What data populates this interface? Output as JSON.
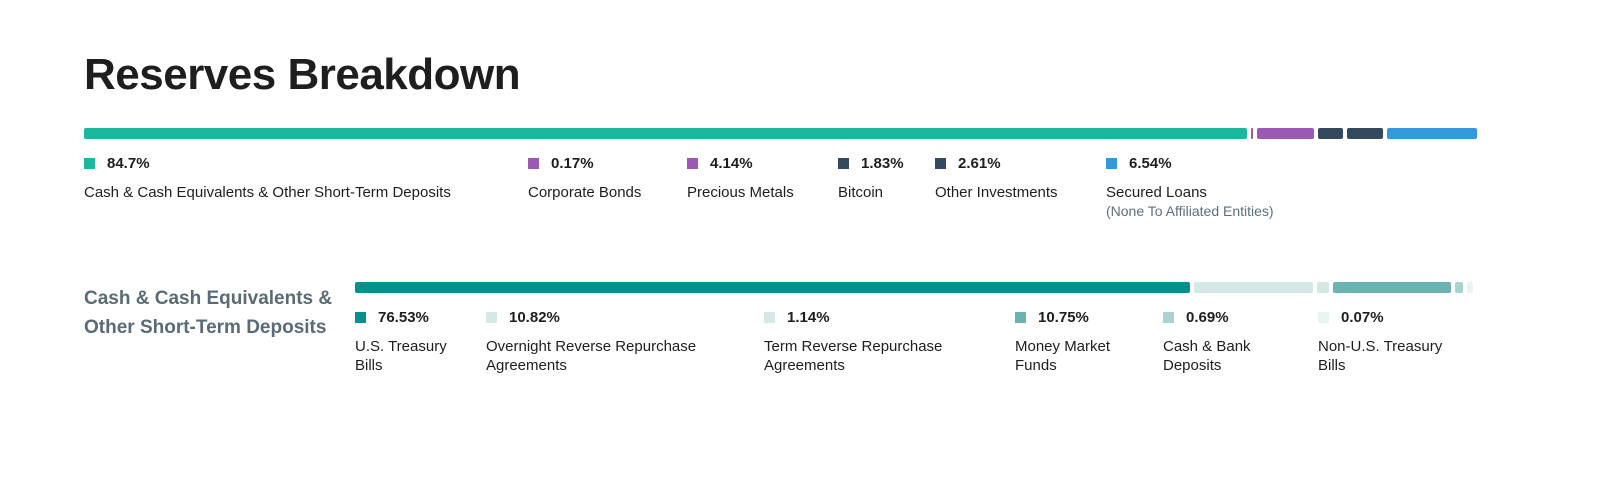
{
  "page": {
    "title": "Reserves Breakdown"
  },
  "chart_data": [
    {
      "type": "bar",
      "orientation": "stacked-horizontal",
      "total": 100,
      "segments": [
        {
          "value": 84.7,
          "pct_label": "84.7%",
          "label": "Cash & Cash Equivalents & Other Short-Term Deposits",
          "sublabel": "",
          "color": "#1cb89b"
        },
        {
          "value": 0.17,
          "pct_label": "0.17%",
          "label": "Corporate Bonds",
          "sublabel": "",
          "color": "#9b59b6"
        },
        {
          "value": 4.14,
          "pct_label": "4.14%",
          "label": "Precious Metals",
          "sublabel": "",
          "color": "#9b59b6"
        },
        {
          "value": 1.83,
          "pct_label": "1.83%",
          "label": "Bitcoin",
          "sublabel": "",
          "color": "#34495e"
        },
        {
          "value": 2.61,
          "pct_label": "2.61%",
          "label": "Other Investments",
          "sublabel": "",
          "color": "#34495e"
        },
        {
          "value": 6.54,
          "pct_label": "6.54%",
          "label": "Secured Loans",
          "sublabel": "(None To Affiliated Entities)",
          "color": "#3498db"
        }
      ]
    },
    {
      "type": "bar",
      "orientation": "stacked-horizontal",
      "title": "Cash & Cash Equivalents & Other Short-Term Deposits",
      "total": 100,
      "segments": [
        {
          "value": 76.53,
          "pct_label": "76.53%",
          "label": "U.S. Treasury Bills",
          "color": "#078f8b"
        },
        {
          "value": 10.82,
          "pct_label": "10.82%",
          "label": "Overnight Reverse Repurchase Agreements",
          "color": "#d4e8e6"
        },
        {
          "value": 1.14,
          "pct_label": "1.14%",
          "label": "Term Reverse Repurchase Agreements",
          "color": "#d4e8e6"
        },
        {
          "value": 10.75,
          "pct_label": "10.75%",
          "label": "Money Market Funds",
          "color": "#6bb3b1"
        },
        {
          "value": 0.69,
          "pct_label": "0.69%",
          "label": "Cash & Bank Deposits",
          "color": "#a8d3d1"
        },
        {
          "value": 0.07,
          "pct_label": "0.07%",
          "label": "Non-U.S. Treasury Bills",
          "color": "#e8f3f2"
        }
      ]
    }
  ]
}
